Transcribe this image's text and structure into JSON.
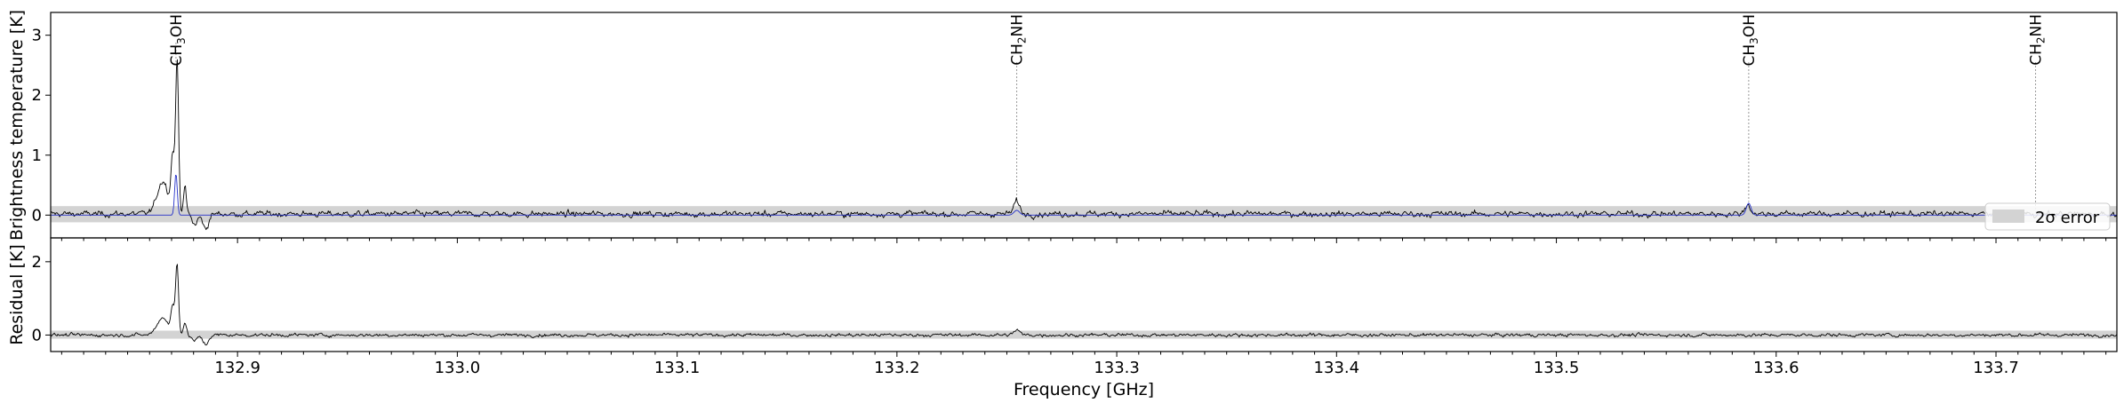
{
  "chart_data": {
    "type": "line",
    "xlabel": "Frequency [GHz]",
    "xlim": [
      132.815,
      133.755
    ],
    "x_ticks": [
      132.9,
      133.0,
      133.1,
      133.2,
      133.3,
      133.4,
      133.5,
      133.6,
      133.7
    ],
    "x_tick_labels": [
      "132.9",
      "133.0",
      "133.1",
      "133.2",
      "133.3",
      "133.4",
      "133.5",
      "133.6",
      "133.7"
    ],
    "grid": false,
    "panels": {
      "spectrum": {
        "ylabel": "Brightness temperature [K]",
        "ylim": [
          -0.38,
          3.38
        ],
        "y_ticks": [
          0,
          1,
          2,
          3
        ],
        "y_tick_labels": [
          "0",
          "1",
          "2",
          "3"
        ],
        "error_band": [
          -0.12,
          0.15
        ],
        "legend": {
          "label": "2σ error",
          "position": "lower-right"
        },
        "line_labels": [
          {
            "species": "CH3OH",
            "x": 132.872,
            "y": 2.9
          },
          {
            "species": "CH2NH",
            "x": 133.2545,
            "y": 0.3
          },
          {
            "species": "CH3OH",
            "x": 133.5875,
            "y": 0.22
          },
          {
            "species": "CH2NH",
            "x": 133.718,
            "y": 0.04
          }
        ]
      },
      "residual": {
        "ylabel": "Residual [K]",
        "ylim": [
          -0.45,
          2.65
        ],
        "y_ticks": [
          0,
          2
        ],
        "y_tick_labels": [
          "0",
          "2"
        ],
        "error_band": [
          -0.1,
          0.12
        ]
      }
    },
    "series": [
      {
        "role": "observed",
        "color": "#000000",
        "noise_rms": 0.042,
        "continuum": 0.02,
        "features": [
          {
            "x": 132.866,
            "y": 0.55,
            "fwhm": 0.006
          },
          {
            "x": 132.8705,
            "y": 0.9,
            "fwhm": 0.0018
          },
          {
            "x": 132.8725,
            "y": 2.55,
            "fwhm": 0.0016
          },
          {
            "x": 132.876,
            "y": 0.45,
            "fwhm": 0.0016
          },
          {
            "x": 132.8805,
            "y": -0.18,
            "fwhm": 0.003
          },
          {
            "x": 132.8855,
            "y": -0.25,
            "fwhm": 0.003
          },
          {
            "x": 133.2545,
            "y": 0.22,
            "fwhm": 0.003
          },
          {
            "x": 133.587,
            "y": 0.16,
            "fwhm": 0.003
          }
        ]
      },
      {
        "role": "model",
        "color": "#2430c8",
        "continuum": 0.0,
        "features": [
          {
            "x": 132.872,
            "y": 0.7,
            "fwhm": 0.0014
          },
          {
            "x": 133.2545,
            "y": 0.08,
            "fwhm": 0.003
          },
          {
            "x": 133.5875,
            "y": 0.2,
            "fwhm": 0.0025
          }
        ]
      },
      {
        "role": "residual",
        "color": "#000000",
        "noise_rms": 0.038,
        "continuum": 0.0,
        "features": [
          {
            "x": 132.866,
            "y": 0.48,
            "fwhm": 0.006
          },
          {
            "x": 132.8705,
            "y": 0.7,
            "fwhm": 0.0018
          },
          {
            "x": 132.8725,
            "y": 1.95,
            "fwhm": 0.0016
          },
          {
            "x": 132.876,
            "y": 0.35,
            "fwhm": 0.0016
          },
          {
            "x": 132.8805,
            "y": -0.16,
            "fwhm": 0.003
          },
          {
            "x": 132.8855,
            "y": -0.26,
            "fwhm": 0.003
          },
          {
            "x": 133.2545,
            "y": 0.14,
            "fwhm": 0.003
          }
        ]
      }
    ],
    "colors": {
      "error_band": "#d3d3d3",
      "marker_line": "#9a9a9a"
    }
  }
}
